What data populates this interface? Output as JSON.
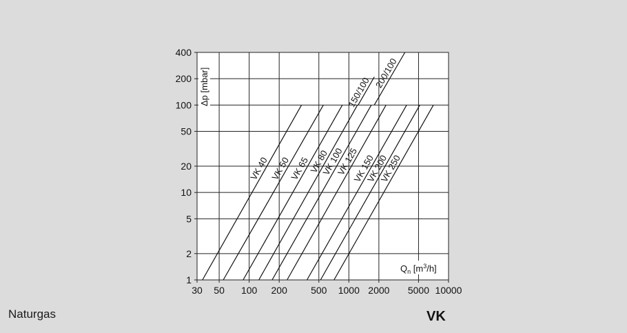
{
  "footer": {
    "left_label": "Naturgas",
    "right_label": "VK"
  },
  "chart_data": {
    "type": "line",
    "title": "",
    "xlabel": "Qn [m3/h]",
    "xlabel_main": "Q",
    "xlabel_sub": "n",
    "xlabel_unit_pre": " [m",
    "xlabel_unit_sup": "3",
    "xlabel_unit_post": "/h]",
    "ylabel": "Δp [mbar]",
    "x_scale": "log",
    "y_scale": "log",
    "xlim": [
      30,
      10000
    ],
    "ylim": [
      1,
      400
    ],
    "grid": true,
    "x_ticks": [
      30,
      50,
      100,
      200,
      500,
      1000,
      2000,
      5000,
      10000
    ],
    "x_tick_labels": [
      "30",
      "50",
      "100",
      "200",
      "500",
      "1000",
      "2000",
      "5000",
      "10000"
    ],
    "y_ticks": [
      1,
      2,
      5,
      10,
      20,
      50,
      100,
      200,
      400
    ],
    "y_tick_labels": [
      "1",
      "2",
      "5",
      "10",
      "20",
      "50",
      "100",
      "200",
      "400"
    ],
    "series": [
      {
        "name": "VK 40",
        "x": [
          34,
          335
        ],
        "y": [
          1,
          100
        ]
      },
      {
        "name": "VK 50",
        "x": [
          55,
          555
        ],
        "y": [
          1,
          100
        ]
      },
      {
        "name": "VK 65",
        "x": [
          87,
          860
        ],
        "y": [
          1,
          100
        ]
      },
      {
        "name": "VK 80",
        "x": [
          125,
          1220
        ],
        "y": [
          1,
          100
        ]
      },
      {
        "name": "VK 100",
        "x": [
          170,
          1680
        ],
        "y": [
          1,
          100
        ]
      },
      {
        "name": "VK 125",
        "x": [
          240,
          2360
        ],
        "y": [
          1,
          100
        ]
      },
      {
        "name": "VK 150",
        "x": [
          380,
          3800
        ],
        "y": [
          1,
          100
        ]
      },
      {
        "name": "VK 200",
        "x": [
          520,
          5150
        ],
        "y": [
          1,
          100
        ]
      },
      {
        "name": "VK 250",
        "x": [
          710,
          7050
        ],
        "y": [
          1,
          100
        ]
      },
      {
        "name": "150/100",
        "x": [
          1240,
          1800
        ],
        "y": [
          100,
          210
        ]
      },
      {
        "name": "200/100",
        "x": [
          1800,
          3650
        ],
        "y": [
          100,
          400
        ]
      }
    ]
  }
}
